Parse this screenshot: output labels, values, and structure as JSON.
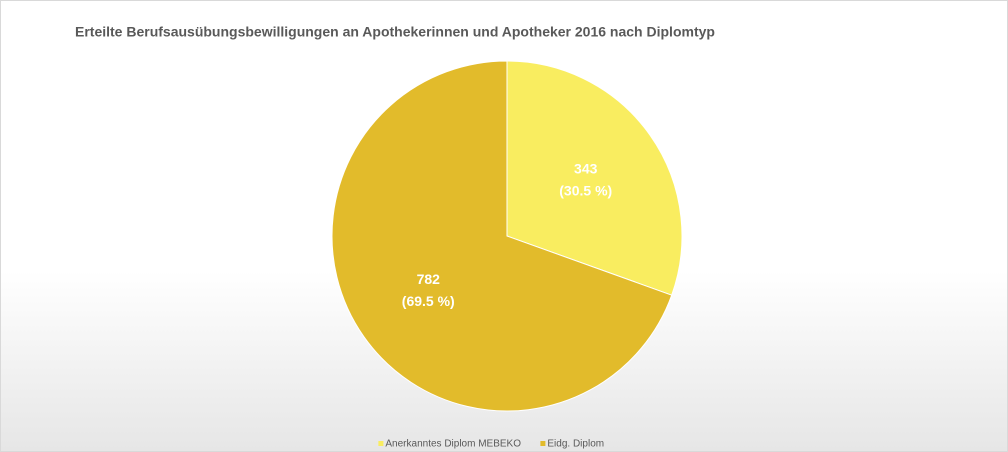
{
  "chart_data": {
    "type": "pie",
    "title": "Erteilte Berufsausübungsbewilligungen an Apothekerinnen und Apotheker 2016 nach Diplomtyp",
    "categories": [
      "Anerkanntes Diplom MEBEKO",
      "Eidg. Diplom"
    ],
    "values": [
      343,
      782
    ],
    "percentages": [
      30.5,
      69.5
    ],
    "percentage_labels": [
      "(30.5 %)",
      "(69.5 %)"
    ],
    "colors": [
      "#f9ed60",
      "#e2bb2b"
    ],
    "legend": "bottom"
  }
}
